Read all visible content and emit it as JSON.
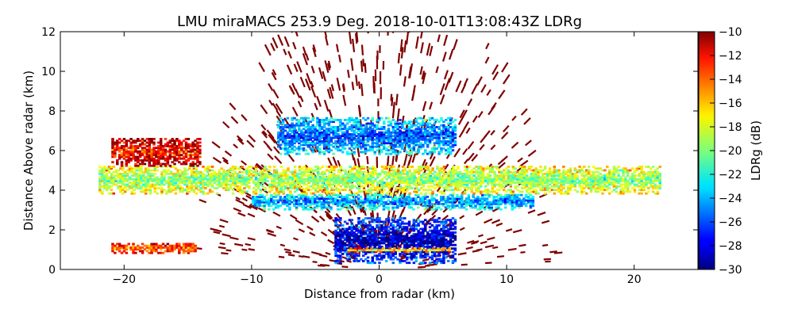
{
  "chart_data": {
    "type": "heatmap",
    "title": "LMU miraMACS 253.9 Deg. 2018-10-01T13:08:43Z  LDRg",
    "xlabel": "Distance from radar (km)",
    "ylabel": "Distance Above radar  (km)",
    "xlim": [
      -25,
      25
    ],
    "ylim": [
      0,
      12
    ],
    "x_ticks": [
      -20,
      -10,
      0,
      10,
      20
    ],
    "y_ticks": [
      0,
      2,
      4,
      6,
      8,
      10,
      12
    ],
    "colorbar": {
      "label": "LDRg (dB)",
      "range": [
        -30,
        -10
      ],
      "ticks": [
        -10,
        -12,
        -14,
        -16,
        -18,
        -20,
        -22,
        -24,
        -26,
        -28,
        -30
      ],
      "colormap": "jet"
    },
    "grid": false,
    "features": [
      {
        "layer": "dense low-LDR region near radar",
        "x_range": [
          -3.5,
          6.0
        ],
        "height_range": [
          0.3,
          2.6
        ],
        "ldr_db": -29
      },
      {
        "layer": "thin bright band",
        "x_range": [
          -2.5,
          5.5
        ],
        "height_range": [
          0.85,
          1.05
        ],
        "ldr_db": -17
      },
      {
        "layer": "mid-level band",
        "x_range": [
          -10.0,
          12.0
        ],
        "height_range": [
          3.0,
          3.8
        ],
        "ldr_db": -25
      },
      {
        "layer": "broad layer",
        "x_range": [
          -22.0,
          22.0
        ],
        "height_range": [
          3.8,
          5.2
        ],
        "ldr_db": -20
      },
      {
        "layer": "upper layer",
        "x_range": [
          -8.0,
          6.0
        ],
        "height_range": [
          5.8,
          7.6
        ],
        "ldr_db": -26
      },
      {
        "layer": "left side noisy layer",
        "x_range": [
          -21.0,
          -14.0
        ],
        "height_range": [
          5.2,
          6.6
        ],
        "ldr_db": -13
      },
      {
        "layer": "left bottom band",
        "x_range": [
          -21.0,
          -14.5
        ],
        "height_range": [
          0.8,
          1.3
        ],
        "ldr_db": -15
      }
    ],
    "colors": {
      "scatter_noise": "#800000",
      "axes": "#000000",
      "background": "#ffffff"
    }
  }
}
